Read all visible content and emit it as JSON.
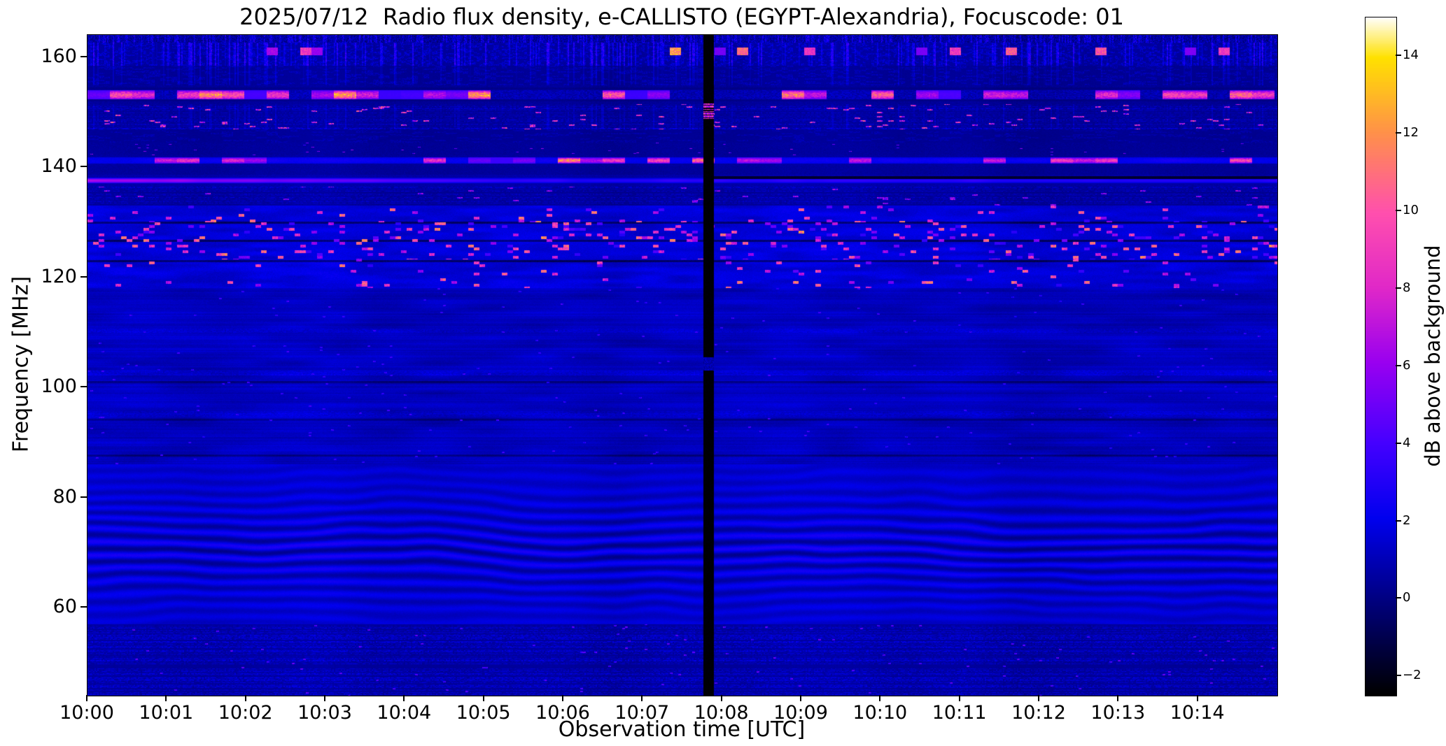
{
  "chart_data": {
    "type": "heatmap",
    "title": "2025/07/12  Radio flux density, e-CALLISTO (EGYPT-Alexandria), Focuscode: 01",
    "date": "2025/07/12",
    "instrument": "e-CALLISTO",
    "station": "EGYPT-Alexandria",
    "focuscode": "01",
    "xlabel": "Observation time [UTC]",
    "ylabel": "Frequency [MHz]",
    "colorbar_label": "dB above background",
    "x_tick_labels": [
      "10:00",
      "10:01",
      "10:02",
      "10:03",
      "10:04",
      "10:05",
      "10:06",
      "10:07",
      "10:08",
      "10:09",
      "10:10",
      "10:11",
      "10:12",
      "10:13",
      "10:14"
    ],
    "x_span_minutes": 15,
    "x_range": [
      "10:00",
      "10:15"
    ],
    "y_tick_values": [
      160,
      140,
      120,
      100,
      80,
      60
    ],
    "freq_range_mhz": [
      44,
      164
    ],
    "colorbar_tick_values": [
      14,
      12,
      10,
      8,
      6,
      4,
      2,
      0,
      -2
    ],
    "colorbar_tick_labels": [
      "14",
      "12",
      "10",
      "8",
      "6",
      "4",
      "2",
      "0",
      "−2"
    ],
    "value_range_db": [
      -2.5,
      15
    ],
    "colormap": "gnuplot2-like (black-blue-violet-magenta-orange-yellow-white)",
    "colormap_stops": [
      [
        0.0,
        "#000000"
      ],
      [
        0.14,
        "#000080"
      ],
      [
        0.26,
        "#0000ee"
      ],
      [
        0.37,
        "#4400ff"
      ],
      [
        0.49,
        "#9900f0"
      ],
      [
        0.6,
        "#e028c8"
      ],
      [
        0.71,
        "#ff4fae"
      ],
      [
        0.83,
        "#ff9149"
      ],
      [
        0.94,
        "#ffe100"
      ],
      [
        1.0,
        "#ffffff"
      ]
    ],
    "seed": 20250712,
    "features": {
      "data_gap": {
        "time_fraction": 0.522,
        "width_fraction": 0.009,
        "description": "black vertical dropout column just before 10:08"
      },
      "carrier_line_mhz": 137.5,
      "carrier_line_2_mhz": 141.2,
      "black_line_after_gap_mhz": 138.1,
      "rfi_burst_band_mhz": [
        151.4,
        154.8
      ],
      "top_activity_band_mhz": [
        158.4,
        162.5
      ],
      "speckle_burst_band_mhz": [
        118,
        133
      ],
      "dark_rows_mhz": [
        122.9,
        126.6,
        129.9
      ],
      "quiet_band_mhz": [
        86,
        118
      ],
      "fringe_band_mhz": [
        57,
        86
      ],
      "bottom_noise_band_mhz": [
        44,
        57
      ]
    }
  }
}
